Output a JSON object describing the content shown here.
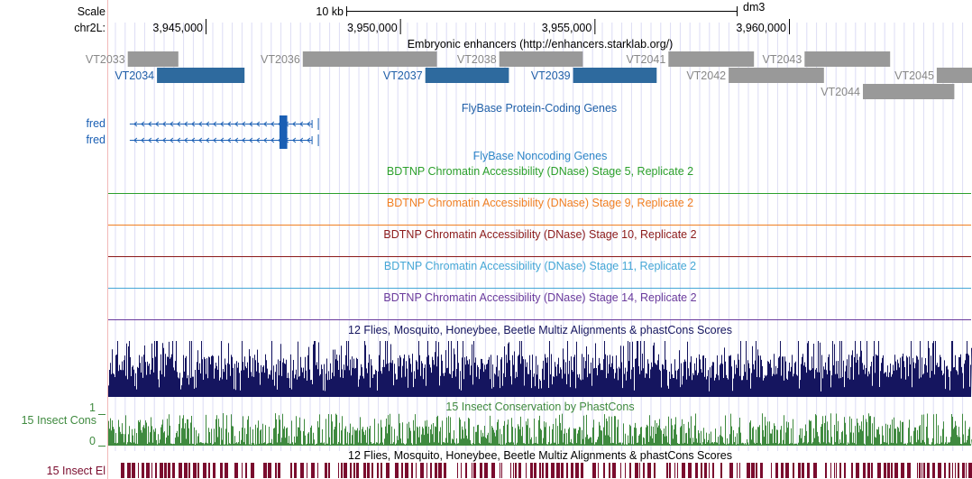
{
  "scale": {
    "label": "Scale",
    "bar_text": "10 kb",
    "assembly": "dm3"
  },
  "chrom": {
    "label": "chr2L:",
    "ticks": [
      {
        "text": "3,945,000",
        "pos": 3945000
      },
      {
        "text": "3,950,000",
        "pos": 3950000
      },
      {
        "text": "3,955,000",
        "pos": 3955000
      },
      {
        "text": "3,960,000",
        "pos": 3960000
      }
    ]
  },
  "enhancers": {
    "title": "Embryonic enhancers (http://enhancers.starklab.org/)",
    "items": [
      {
        "name": "VT2033",
        "color": "gray",
        "start": 3943000,
        "end": 3944300
      },
      {
        "name": "VT2034",
        "color": "blue",
        "start": 3943750,
        "end": 3946000
      },
      {
        "name": "VT2036",
        "color": "gray",
        "start": 3947500,
        "end": 3950950
      },
      {
        "name": "VT2037",
        "color": "blue",
        "start": 3950650,
        "end": 3952800
      },
      {
        "name": "VT2038",
        "color": "gray",
        "start": 3952550,
        "end": 3954700
      },
      {
        "name": "VT2039",
        "color": "blue",
        "start": 3954450,
        "end": 3956600
      },
      {
        "name": "VT2041",
        "color": "gray",
        "start": 3956900,
        "end": 3959100
      },
      {
        "name": "VT2042",
        "color": "gray",
        "start": 3958450,
        "end": 3960900
      },
      {
        "name": "VT2043",
        "color": "gray",
        "start": 3960400,
        "end": 3962600
      },
      {
        "name": "VT2044",
        "color": "gray",
        "start": 3961900,
        "end": 3964250
      },
      {
        "name": "VT2045",
        "color": "gray",
        "start": 3963800,
        "end": 3965500
      }
    ]
  },
  "protein_genes": {
    "title": "FlyBase Protein-Coding Genes",
    "genes": [
      {
        "name": "fred",
        "start": 3943050,
        "end": 3947900,
        "exon_start": 3946900,
        "exon_end": 3947100
      },
      {
        "name": "fred",
        "start": 3943050,
        "end": 3947900,
        "exon_start": 3946900,
        "exon_end": 3947100
      }
    ]
  },
  "noncoding_genes": {
    "title": "FlyBase Noncoding Genes"
  },
  "dnase_tracks": [
    {
      "title": "BDTNP Chromatin Accessibility (DNase) Stage 5, Replicate 2",
      "color": "#2ca02c"
    },
    {
      "title": "BDTNP Chromatin Accessibility (DNase) Stage 9, Replicate 2",
      "color": "#f07f22"
    },
    {
      "title": "BDTNP Chromatin Accessibility (DNase) Stage 10, Replicate 2",
      "color": "#8b1a1a"
    },
    {
      "title": "BDTNP Chromatin Accessibility (DNase) Stage 11, Replicate 2",
      "color": "#45a7d6"
    },
    {
      "title": "BDTNP Chromatin Accessibility (DNase) Stage 14, Replicate 2",
      "color": "#6a3a9c"
    }
  ],
  "multiz": {
    "title": "12 Flies, Mosquito, Honeybee, Beetle Multiz Alignments & phastCons Scores",
    "color": "#15155f"
  },
  "insect_cons": {
    "title": "15 Insect Conservation by PhastCons",
    "side_label": "15 Insect Cons",
    "ymax": "1",
    "ymin": "0",
    "color": "#3f8a3f"
  },
  "multiz2": {
    "title": "12 Flies, Mosquito, Honeybee, Beetle Multiz Alignments & phastCons Scores"
  },
  "elements": {
    "side_label": "15 Insect El",
    "color": "#7a0c2e"
  },
  "colors": {
    "blue": "#2e6a9e",
    "gray": "#999999",
    "gene": "#1a5fb4",
    "label_blue": "#1f5fa8",
    "label_gray": "#888888"
  }
}
